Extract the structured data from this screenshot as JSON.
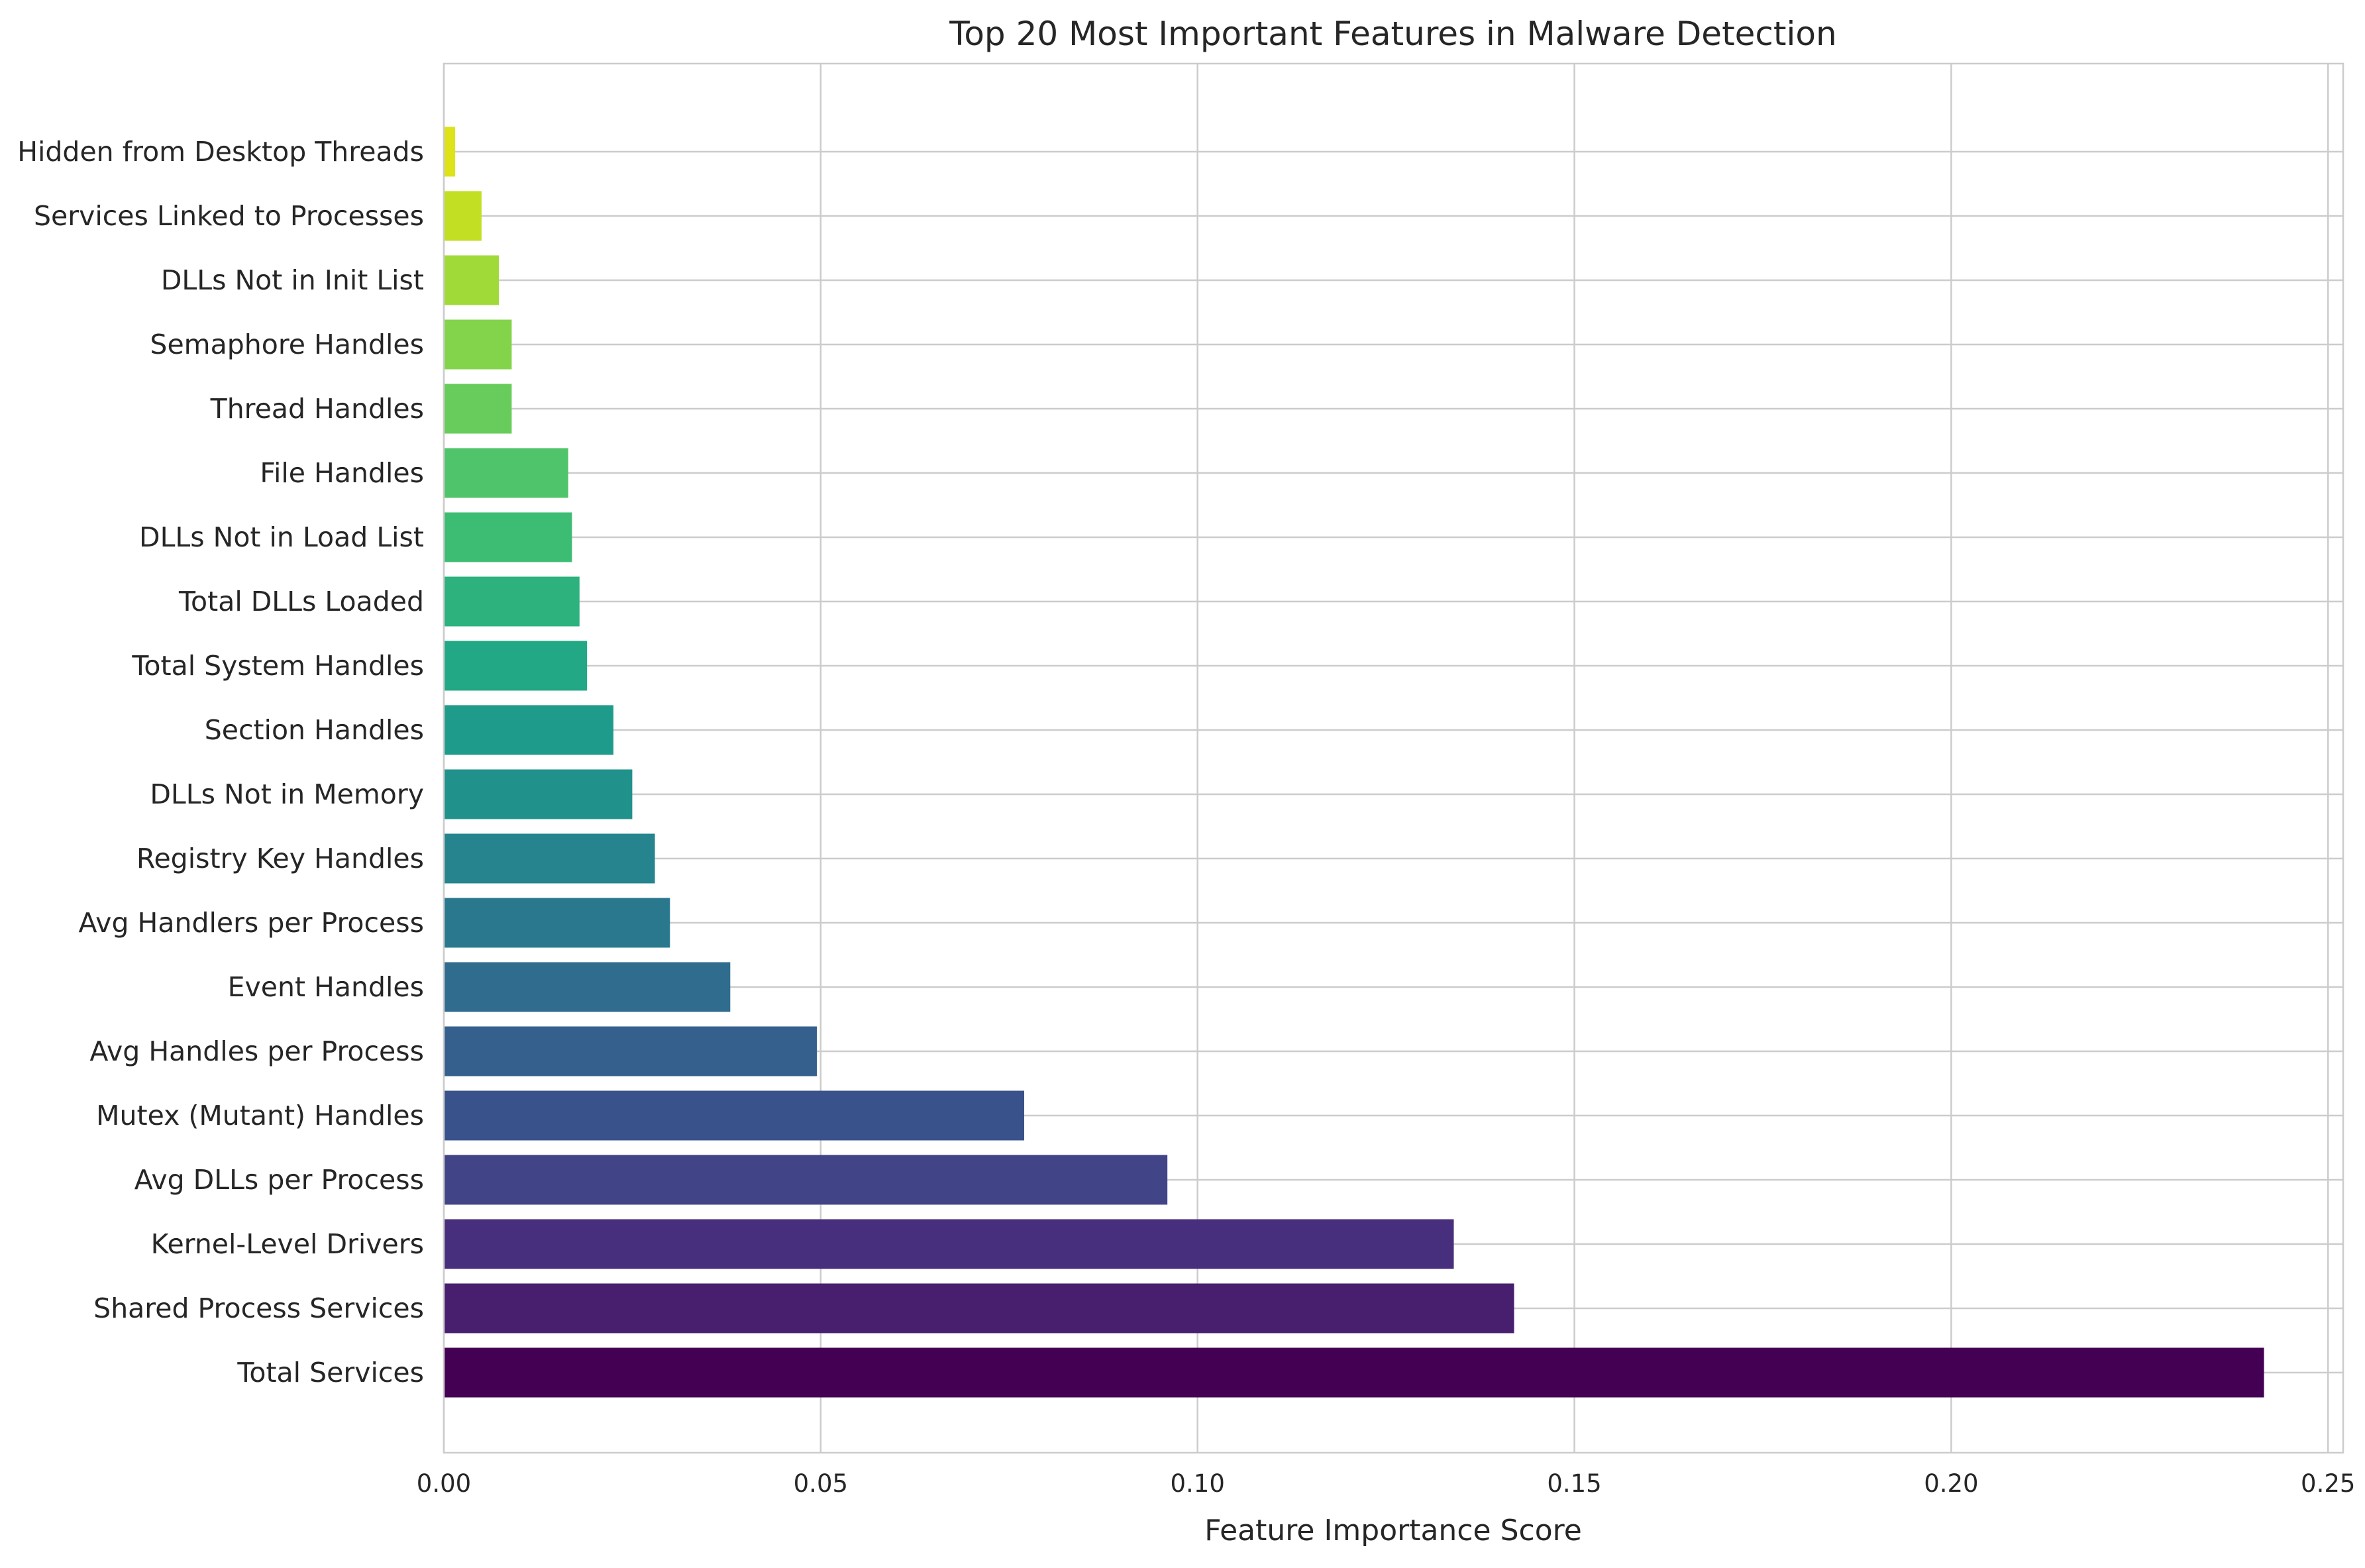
{
  "chart_data": {
    "type": "bar",
    "orientation": "horizontal",
    "title": "Top 20 Most Important Features in Malware Detection",
    "xlabel": "Feature Importance Score",
    "ylabel": "",
    "xlim": [
      0,
      0.252
    ],
    "xticks": [
      0.0,
      0.05,
      0.1,
      0.15,
      0.2,
      0.25
    ],
    "xtick_labels": [
      "0.00",
      "0.05",
      "0.10",
      "0.15",
      "0.20",
      "0.25"
    ],
    "grid": true,
    "colormap": "viridis",
    "categories": [
      "Total Services",
      "Shared Process Services",
      "Kernel-Level Drivers",
      "Avg DLLs per Process",
      "Mutex (Mutant) Handles",
      "Avg Handles per Process",
      "Event Handles",
      "Avg Handlers per Process",
      "Registry Key Handles",
      "DLLs Not in Memory",
      "Section Handles",
      "Total System Handles",
      "Total DLLs Loaded",
      "DLLs Not in Load List",
      "File Handles",
      "Thread Handles",
      "Semaphore Handles",
      "DLLs Not in Init List",
      "Services Linked to Processes",
      "Hidden from Desktop Threads"
    ],
    "values": [
      0.2415,
      0.142,
      0.134,
      0.096,
      0.077,
      0.0495,
      0.038,
      0.03,
      0.028,
      0.025,
      0.0225,
      0.019,
      0.018,
      0.017,
      0.0165,
      0.009,
      0.009,
      0.0073,
      0.005,
      0.0015
    ],
    "colors": [
      "#440154",
      "#481e6f",
      "#472f7d",
      "#414487",
      "#3a528b",
      "#355f8d",
      "#2f6c8e",
      "#2a788e",
      "#25848e",
      "#21918c",
      "#1e9b8a",
      "#22a884",
      "#2db27d",
      "#3dbc74",
      "#4fc46a",
      "#67cc5c",
      "#84d44b",
      "#a0da39",
      "#c2df23",
      "#dde318"
    ]
  }
}
